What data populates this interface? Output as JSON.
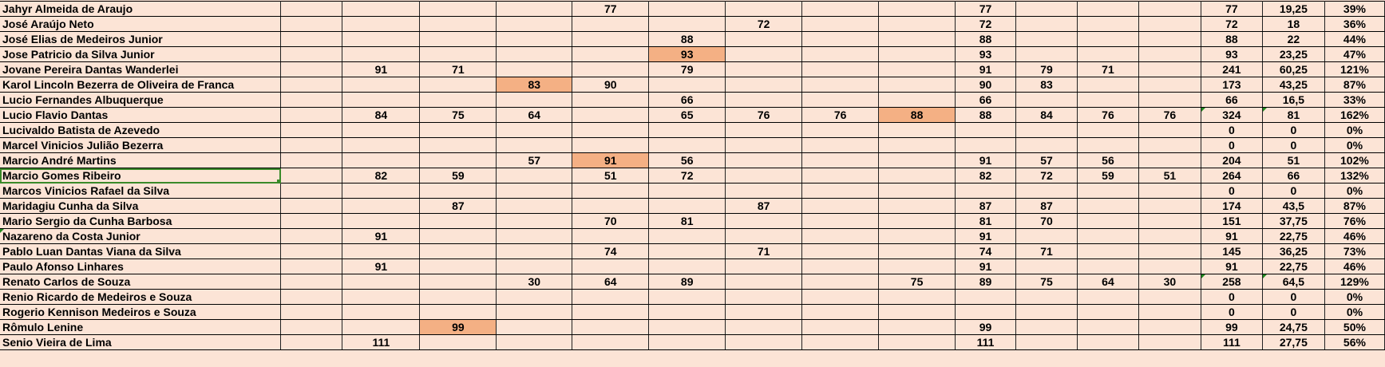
{
  "colors": {
    "cell_background": "#FCE4D6",
    "highlight": "#F4B084",
    "selection": "#3A8A2A"
  },
  "selected_row": 11,
  "rows": [
    {
      "name": "Jahyr Almeida de Araujo",
      "scores": [
        "",
        "",
        "",
        "77",
        "",
        "",
        "",
        ""
      ],
      "highlight": null,
      "top": [
        "77",
        "",
        "",
        ""
      ],
      "total": "77",
      "avg": "19,25",
      "pct": "39%"
    },
    {
      "name": "José Araújo Neto",
      "scores": [
        "",
        "",
        "",
        "",
        "",
        "72",
        "",
        ""
      ],
      "highlight": null,
      "top": [
        "72",
        "",
        "",
        ""
      ],
      "total": "72",
      "avg": "18",
      "pct": "36%"
    },
    {
      "name": "José Elias de Medeiros Junior",
      "scores": [
        "",
        "",
        "",
        "",
        "88",
        "",
        "",
        ""
      ],
      "highlight": null,
      "top": [
        "88",
        "",
        "",
        ""
      ],
      "total": "88",
      "avg": "22",
      "pct": "44%"
    },
    {
      "name": "Jose Patricio da Silva Junior",
      "scores": [
        "",
        "",
        "",
        "",
        "93",
        "",
        "",
        ""
      ],
      "highlight": 4,
      "top": [
        "93",
        "",
        "",
        ""
      ],
      "total": "93",
      "avg": "23,25",
      "pct": "47%"
    },
    {
      "name": "Jovane Pereira Dantas Wanderlei",
      "scores": [
        "91",
        "71",
        "",
        "",
        "79",
        "",
        "",
        ""
      ],
      "highlight": null,
      "top": [
        "91",
        "79",
        "71",
        ""
      ],
      "total": "241",
      "avg": "60,25",
      "pct": "121%"
    },
    {
      "name": "Karol Lincoln Bezerra de Oliveira de Franca",
      "scores": [
        "",
        "",
        "83",
        "90",
        "",
        "",
        "",
        ""
      ],
      "highlight": 2,
      "top": [
        "90",
        "83",
        "",
        ""
      ],
      "total": "173",
      "avg": "43,25",
      "pct": "87%"
    },
    {
      "name": "Lucio Fernandes Albuquerque",
      "scores": [
        "",
        "",
        "",
        "",
        "66",
        "",
        "",
        ""
      ],
      "highlight": null,
      "top": [
        "66",
        "",
        "",
        ""
      ],
      "total": "66",
      "avg": "16,5",
      "pct": "33%"
    },
    {
      "name": "Lucio Flavio Dantas",
      "scores": [
        "84",
        "75",
        "64",
        "",
        "65",
        "76",
        "76",
        "88"
      ],
      "highlight": 7,
      "top": [
        "88",
        "84",
        "76",
        "76"
      ],
      "total": "324",
      "avg": "81",
      "pct": "162%",
      "flag": true
    },
    {
      "name": "Lucivaldo Batista de Azevedo",
      "scores": [
        "",
        "",
        "",
        "",
        "",
        "",
        "",
        ""
      ],
      "highlight": null,
      "top": [
        "",
        "",
        "",
        ""
      ],
      "total": "0",
      "avg": "0",
      "pct": "0%"
    },
    {
      "name": "Marcel Vinicios Julião Bezerra",
      "scores": [
        "",
        "",
        "",
        "",
        "",
        "",
        "",
        ""
      ],
      "highlight": null,
      "top": [
        "",
        "",
        "",
        ""
      ],
      "total": "0",
      "avg": "0",
      "pct": "0%"
    },
    {
      "name": "Marcio André Martins",
      "scores": [
        "",
        "",
        "57",
        "91",
        "56",
        "",
        "",
        ""
      ],
      "highlight": 3,
      "top": [
        "91",
        "57",
        "56",
        ""
      ],
      "total": "204",
      "avg": "51",
      "pct": "102%"
    },
    {
      "name": "Marcio Gomes Ribeiro",
      "scores": [
        "82",
        "59",
        "",
        "51",
        "72",
        "",
        "",
        ""
      ],
      "highlight": null,
      "top": [
        "82",
        "72",
        "59",
        "51"
      ],
      "total": "264",
      "avg": "66",
      "pct": "132%"
    },
    {
      "name": "Marcos Vinicios Rafael da Silva",
      "scores": [
        "",
        "",
        "",
        "",
        "",
        "",
        "",
        ""
      ],
      "highlight": null,
      "top": [
        "",
        "",
        "",
        ""
      ],
      "total": "0",
      "avg": "0",
      "pct": "0%"
    },
    {
      "name": "Maridagiu Cunha da Silva",
      "scores": [
        "",
        "87",
        "",
        "",
        "",
        "87",
        "",
        ""
      ],
      "highlight": null,
      "top": [
        "87",
        "87",
        "",
        ""
      ],
      "total": "174",
      "avg": "43,5",
      "pct": "87%"
    },
    {
      "name": "Mario Sergio da Cunha Barbosa",
      "scores": [
        "",
        "",
        "",
        "70",
        "81",
        "",
        "",
        ""
      ],
      "highlight": null,
      "top": [
        "81",
        "70",
        "",
        ""
      ],
      "total": "151",
      "avg": "37,75",
      "pct": "76%"
    },
    {
      "name": "Nazareno da Costa Junior",
      "scores": [
        "91",
        "",
        "",
        "",
        "",
        "",
        "",
        ""
      ],
      "highlight": null,
      "top": [
        "91",
        "",
        "",
        ""
      ],
      "total": "91",
      "avg": "22,75",
      "pct": "46%"
    },
    {
      "name": "Pablo Luan Dantas Viana da Silva",
      "scores": [
        "",
        "",
        "",
        "74",
        "",
        "71",
        "",
        ""
      ],
      "highlight": null,
      "top": [
        "74",
        "71",
        "",
        ""
      ],
      "total": "145",
      "avg": "36,25",
      "pct": "73%"
    },
    {
      "name": "Paulo Afonso Linhares",
      "scores": [
        "91",
        "",
        "",
        "",
        "",
        "",
        "",
        ""
      ],
      "highlight": null,
      "top": [
        "91",
        "",
        "",
        ""
      ],
      "total": "91",
      "avg": "22,75",
      "pct": "46%"
    },
    {
      "name": "Renato Carlos de Souza",
      "scores": [
        "",
        "",
        "30",
        "64",
        "89",
        "",
        "",
        "75"
      ],
      "highlight": null,
      "top": [
        "89",
        "75",
        "64",
        "30"
      ],
      "total": "258",
      "avg": "64,5",
      "pct": "129%",
      "flag": true
    },
    {
      "name": "Renio Ricardo de Medeiros e Souza",
      "scores": [
        "",
        "",
        "",
        "",
        "",
        "",
        "",
        ""
      ],
      "highlight": null,
      "top": [
        "",
        "",
        "",
        ""
      ],
      "total": "0",
      "avg": "0",
      "pct": "0%"
    },
    {
      "name": "Rogerio Kennison Medeiros e Souza",
      "scores": [
        "",
        "",
        "",
        "",
        "",
        "",
        "",
        ""
      ],
      "highlight": null,
      "top": [
        "",
        "",
        "",
        ""
      ],
      "total": "0",
      "avg": "0",
      "pct": "0%"
    },
    {
      "name": "Rômulo Lenine",
      "scores": [
        "",
        "99",
        "",
        "",
        "",
        "",
        "",
        ""
      ],
      "highlight": 1,
      "top": [
        "99",
        "",
        "",
        ""
      ],
      "total": "99",
      "avg": "24,75",
      "pct": "50%"
    },
    {
      "name": "Senio Vieira de Lima",
      "scores": [
        "111",
        "",
        "",
        "",
        "",
        "",
        "",
        ""
      ],
      "highlight": null,
      "top": [
        "111",
        "",
        "",
        ""
      ],
      "total": "111",
      "avg": "27,75",
      "pct": "56%"
    }
  ]
}
